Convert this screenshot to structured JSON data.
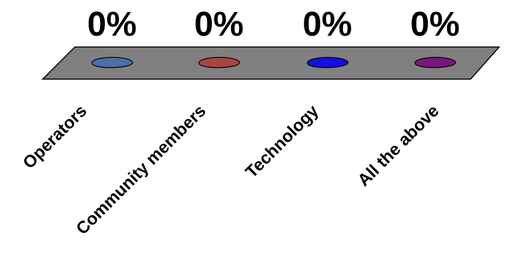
{
  "chart_data": {
    "type": "bar",
    "style": "3d",
    "categories": [
      "Operators",
      "Community members",
      "Technology",
      "All the above"
    ],
    "values": [
      0,
      0,
      0,
      0
    ],
    "data_labels": [
      "0%",
      "0%",
      "0%",
      "0%"
    ],
    "colors": [
      "#4a6fa5",
      "#a94442",
      "#1010e0",
      "#7b157b"
    ],
    "floor_color": "#808080",
    "ylim": [
      0,
      1
    ],
    "grid": false,
    "legend": "none"
  }
}
